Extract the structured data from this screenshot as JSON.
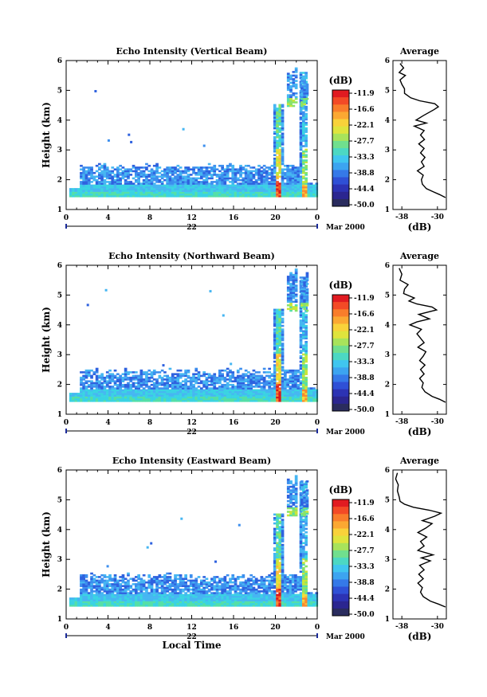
{
  "chart_data": [
    {
      "type": "heatmap",
      "title": "Echo Intensity (Vertical Beam)",
      "ylabel": "Height (km)",
      "xlim": [
        0,
        24
      ],
      "ylim": [
        1,
        6
      ],
      "xticks": [
        "0",
        "4",
        "8",
        "12",
        "16",
        "20",
        "0"
      ],
      "yticks": [
        "1",
        "2",
        "3",
        "4",
        "5",
        "6"
      ],
      "date_label": "22",
      "month_label": "Mar 2000",
      "colorbar": {
        "unit_label": "(dB)",
        "ticks": [
          "-11.9",
          "-16.6",
          "-22.1",
          "-27.7",
          "-33.3",
          "-38.8",
          "-44.4",
          "-50.0"
        ]
      },
      "average_profile": {
        "title": "Average",
        "xlabel": "(dB)",
        "xticks": [
          "-38",
          "-30"
        ],
        "yticks": [
          "1",
          "2",
          "3",
          "4",
          "5",
          "6"
        ],
        "xlim": [
          -40,
          -28
        ],
        "points": [
          [
            -28.2,
            1.4
          ],
          [
            -29.5,
            1.5
          ],
          [
            -31.0,
            1.6
          ],
          [
            -32.5,
            1.7
          ],
          [
            -33.4,
            1.85
          ],
          [
            -33.6,
            2.0
          ],
          [
            -33.2,
            2.15
          ],
          [
            -34.5,
            2.3
          ],
          [
            -33.0,
            2.45
          ],
          [
            -33.6,
            2.6
          ],
          [
            -32.8,
            2.75
          ],
          [
            -33.8,
            2.9
          ],
          [
            -33.0,
            3.05
          ],
          [
            -34.2,
            3.2
          ],
          [
            -32.9,
            3.35
          ],
          [
            -33.8,
            3.5
          ],
          [
            -33.0,
            3.65
          ],
          [
            -35.2,
            3.8
          ],
          [
            -32.5,
            3.9
          ],
          [
            -34.8,
            4.0
          ],
          [
            -33.2,
            4.15
          ],
          [
            -30.8,
            4.35
          ],
          [
            -29.8,
            4.45
          ],
          [
            -30.6,
            4.55
          ],
          [
            -34.0,
            4.65
          ],
          [
            -36.0,
            4.75
          ],
          [
            -37.4,
            4.9
          ],
          [
            -37.4,
            5.05
          ],
          [
            -38.0,
            5.2
          ],
          [
            -38.4,
            5.35
          ],
          [
            -37.2,
            5.5
          ],
          [
            -38.6,
            5.6
          ],
          [
            -37.6,
            5.75
          ],
          [
            -38.4,
            5.9
          ]
        ]
      }
    },
    {
      "type": "heatmap",
      "title": "Echo Intensity (Northward Beam)",
      "ylabel": "Height (km)",
      "xlim": [
        0,
        24
      ],
      "ylim": [
        1,
        6
      ],
      "xticks": [
        "0",
        "4",
        "8",
        "12",
        "16",
        "20",
        "0"
      ],
      "yticks": [
        "1",
        "2",
        "3",
        "4",
        "5",
        "6"
      ],
      "date_label": "22",
      "month_label": "Mar 2000",
      "colorbar": {
        "unit_label": "(dB)",
        "ticks": [
          "-11.9",
          "-16.6",
          "-22.1",
          "-27.7",
          "-33.3",
          "-38.8",
          "-44.4",
          "-50.0"
        ]
      },
      "average_profile": {
        "title": "Average",
        "xlabel": "(dB)",
        "xticks": [
          "-38",
          "-30"
        ],
        "yticks": [
          "1",
          "2",
          "3",
          "4",
          "5",
          "6"
        ],
        "xlim": [
          -40,
          -28
        ],
        "points": [
          [
            -28.2,
            1.4
          ],
          [
            -29.5,
            1.5
          ],
          [
            -31.2,
            1.6
          ],
          [
            -32.8,
            1.75
          ],
          [
            -33.5,
            1.9
          ],
          [
            -33.2,
            2.05
          ],
          [
            -34.0,
            2.2
          ],
          [
            -33.0,
            2.35
          ],
          [
            -33.8,
            2.5
          ],
          [
            -32.8,
            2.65
          ],
          [
            -34.0,
            2.8
          ],
          [
            -33.2,
            2.95
          ],
          [
            -32.6,
            3.1
          ],
          [
            -34.4,
            3.25
          ],
          [
            -33.0,
            3.4
          ],
          [
            -33.8,
            3.55
          ],
          [
            -34.6,
            3.7
          ],
          [
            -33.6,
            3.85
          ],
          [
            -36.2,
            4.0
          ],
          [
            -34.6,
            4.1
          ],
          [
            -31.8,
            4.2
          ],
          [
            -34.2,
            4.35
          ],
          [
            -30.2,
            4.5
          ],
          [
            -31.2,
            4.6
          ],
          [
            -34.6,
            4.7
          ],
          [
            -36.4,
            4.8
          ],
          [
            -35.2,
            4.9
          ],
          [
            -37.6,
            5.05
          ],
          [
            -37.4,
            5.2
          ],
          [
            -36.6,
            5.35
          ],
          [
            -38.4,
            5.5
          ],
          [
            -38.0,
            5.7
          ],
          [
            -38.6,
            5.9
          ]
        ]
      }
    },
    {
      "type": "heatmap",
      "title": "Echo Intensity (Eastward Beam)",
      "ylabel": "Height (km)",
      "xlabel": "Local Time",
      "xlim": [
        0,
        24
      ],
      "ylim": [
        1,
        6
      ],
      "xticks": [
        "0",
        "4",
        "8",
        "12",
        "16",
        "20",
        "0"
      ],
      "yticks": [
        "1",
        "2",
        "3",
        "4",
        "5",
        "6"
      ],
      "date_label": "22",
      "month_label": "Mar 2000",
      "colorbar": {
        "unit_label": "(dB)",
        "ticks": [
          "-11.9",
          "-16.6",
          "-22.1",
          "-27.7",
          "-33.3",
          "-38.8",
          "-44.4",
          "-50.0"
        ]
      },
      "average_profile": {
        "title": "Average",
        "xlabel": "(dB)",
        "xticks": [
          "-38",
          "-30"
        ],
        "yticks": [
          "1",
          "2",
          "3",
          "4",
          "5",
          "6"
        ],
        "xlim": [
          -40,
          -28
        ],
        "points": [
          [
            -28.2,
            1.4
          ],
          [
            -29.8,
            1.5
          ],
          [
            -31.6,
            1.6
          ],
          [
            -33.2,
            1.75
          ],
          [
            -33.8,
            1.9
          ],
          [
            -33.4,
            2.05
          ],
          [
            -34.4,
            2.2
          ],
          [
            -33.2,
            2.35
          ],
          [
            -34.2,
            2.5
          ],
          [
            -33.0,
            2.65
          ],
          [
            -34.0,
            2.8
          ],
          [
            -31.6,
            2.95
          ],
          [
            -33.6,
            3.05
          ],
          [
            -31.0,
            3.15
          ],
          [
            -34.4,
            3.3
          ],
          [
            -33.0,
            3.45
          ],
          [
            -33.8,
            3.6
          ],
          [
            -32.4,
            3.75
          ],
          [
            -34.4,
            3.9
          ],
          [
            -32.6,
            4.05
          ],
          [
            -31.2,
            4.2
          ],
          [
            -33.4,
            4.3
          ],
          [
            -30.6,
            4.45
          ],
          [
            -29.2,
            4.55
          ],
          [
            -31.8,
            4.65
          ],
          [
            -35.4,
            4.75
          ],
          [
            -37.4,
            4.85
          ],
          [
            -38.4,
            4.95
          ],
          [
            -38.6,
            5.1
          ],
          [
            -39.0,
            5.3
          ],
          [
            -38.8,
            5.5
          ],
          [
            -39.4,
            5.7
          ],
          [
            -39.0,
            5.9
          ]
        ]
      }
    }
  ]
}
